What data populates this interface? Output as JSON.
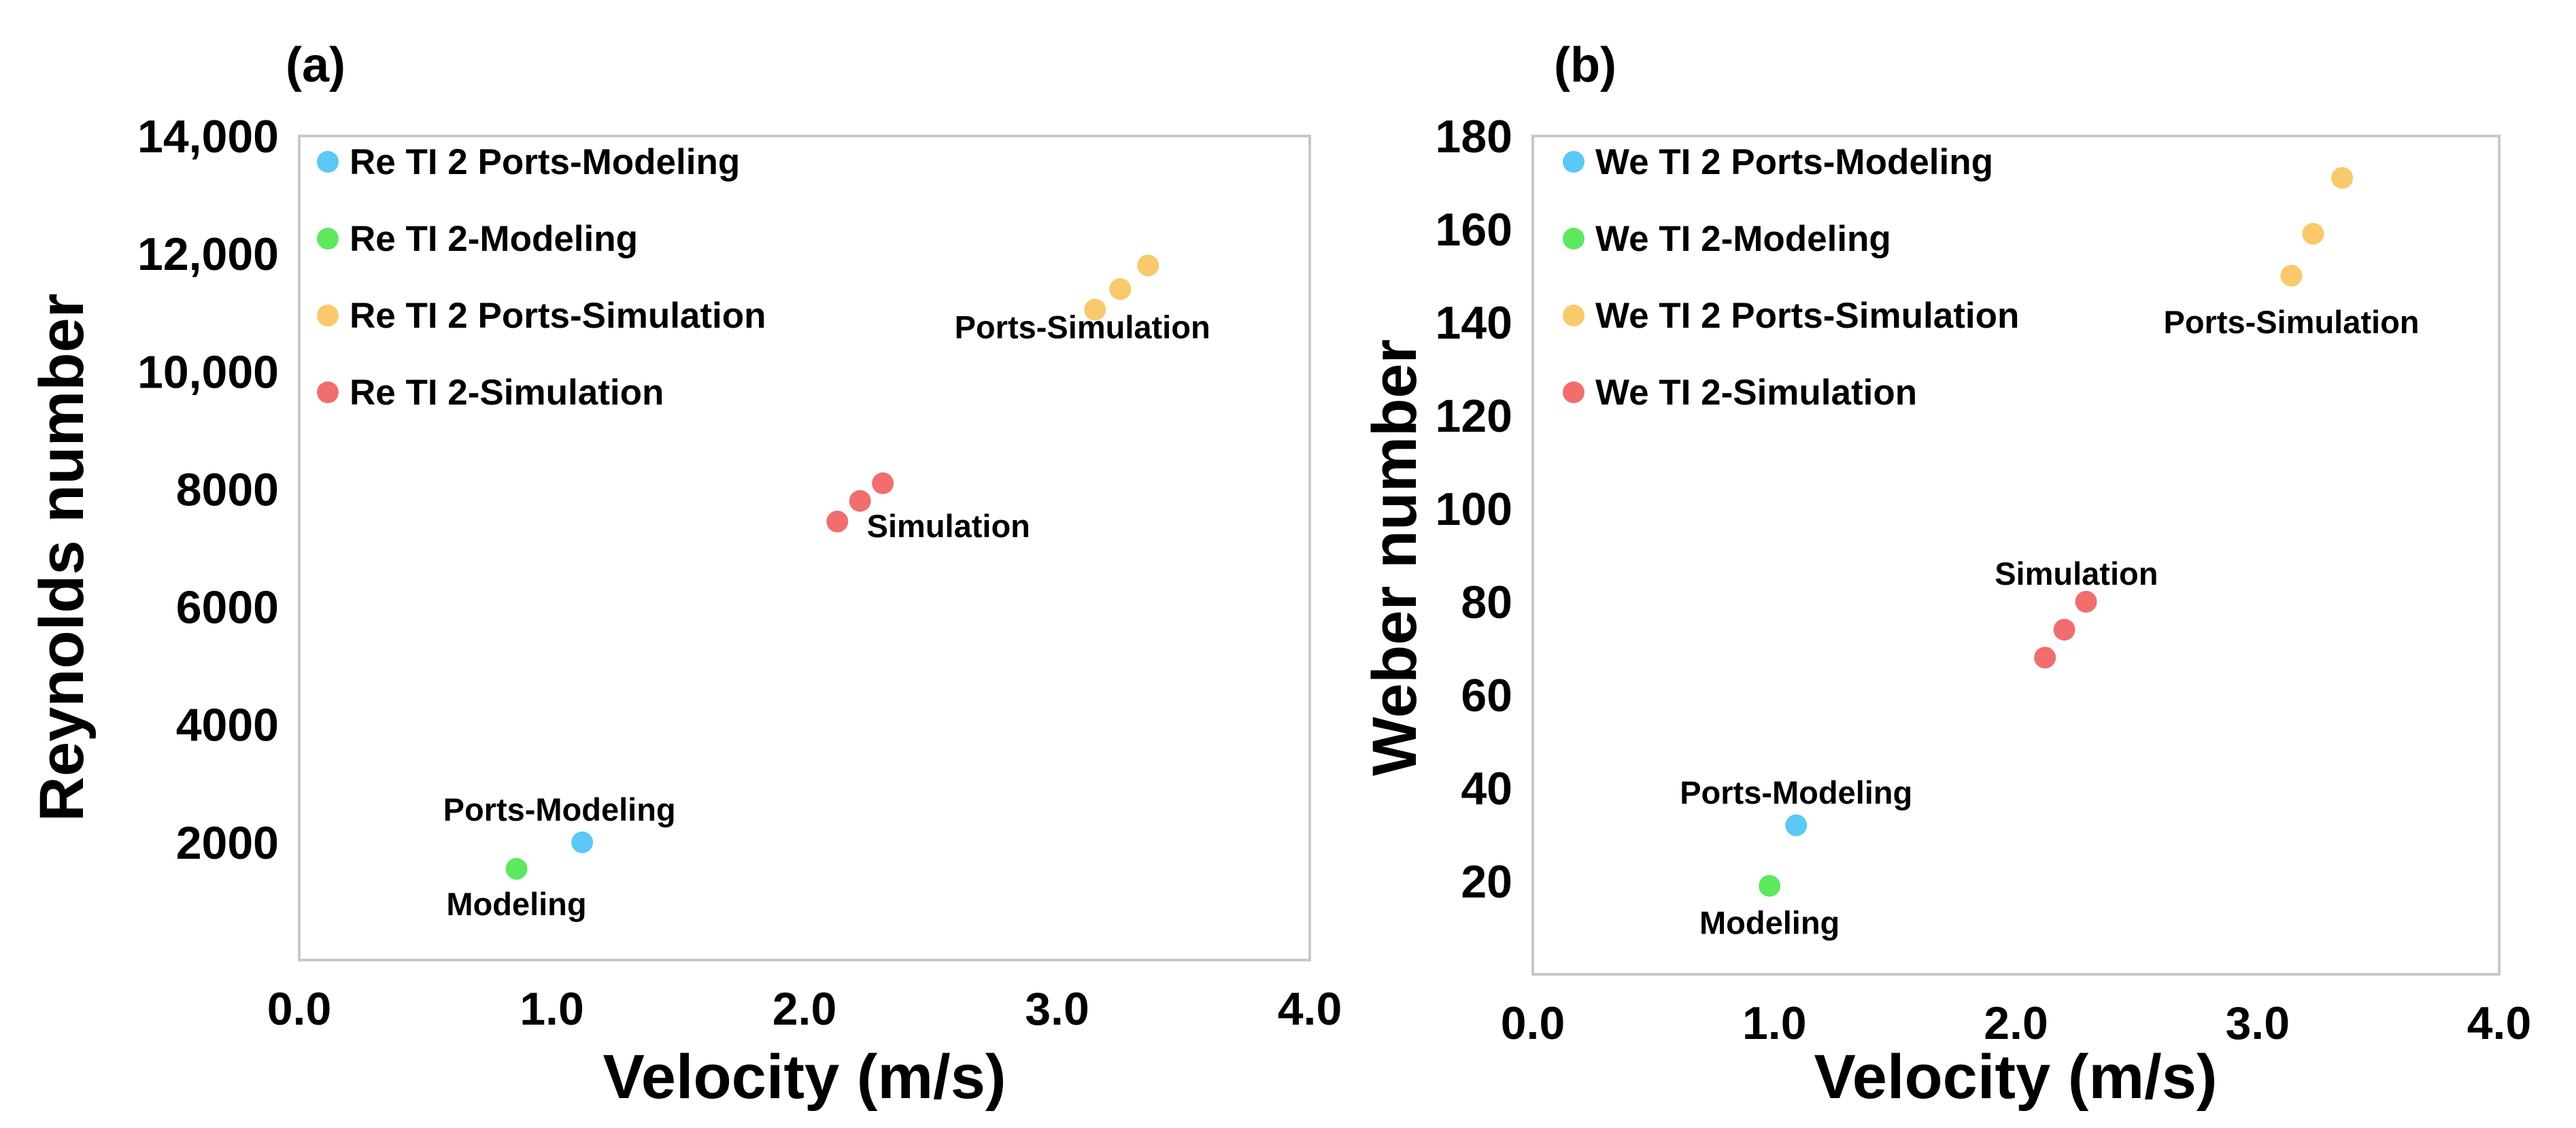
{
  "chart_data": [
    {
      "type": "scatter",
      "panel_label": "(a)",
      "xlabel": "Velocity (m/s)",
      "ylabel": "Reynolds number",
      "xlim": [
        0.0,
        4.0
      ],
      "ylim": [
        0,
        14000
      ],
      "grid": false,
      "legend_position": "top-left",
      "x_ticks": [
        {
          "value": 0.0,
          "label": "0.0"
        },
        {
          "value": 1.0,
          "label": "1.0"
        },
        {
          "value": 2.0,
          "label": "2.0"
        },
        {
          "value": 3.0,
          "label": "3.0"
        },
        {
          "value": 4.0,
          "label": "4.0"
        }
      ],
      "y_ticks": [
        {
          "value": 2000,
          "label": "2000"
        },
        {
          "value": 4000,
          "label": "4000"
        },
        {
          "value": 6000,
          "label": "6000"
        },
        {
          "value": 8000,
          "label": "8000"
        },
        {
          "value": 10000,
          "label": "10,000"
        },
        {
          "value": 12000,
          "label": "12,000"
        },
        {
          "value": 14000,
          "label": "14,000"
        }
      ],
      "series": [
        {
          "name": "Re TI 2 Ports-Modeling",
          "color": "#5bc8f5",
          "points": [
            {
              "x": 1.12,
              "y": 2000
            }
          ]
        },
        {
          "name": "Re TI 2-Modeling",
          "color": "#5ee85e",
          "points": [
            {
              "x": 0.86,
              "y": 1550
            }
          ]
        },
        {
          "name": "Re TI 2 Ports-Simulation",
          "color": "#f9c96b",
          "points": [
            {
              "x": 3.15,
              "y": 11050
            },
            {
              "x": 3.25,
              "y": 11400
            },
            {
              "x": 3.36,
              "y": 11800
            }
          ]
        },
        {
          "name": "Re TI 2-Simulation",
          "color": "#f26d6d",
          "points": [
            {
              "x": 2.13,
              "y": 7450
            },
            {
              "x": 2.22,
              "y": 7800
            },
            {
              "x": 2.31,
              "y": 8100
            }
          ]
        }
      ],
      "annotations": [
        {
          "text": "Ports-Simulation",
          "x": 3.1,
          "y": 10750
        },
        {
          "text": "Simulation",
          "x": 2.57,
          "y": 7370
        },
        {
          "text": "Ports-Modeling",
          "x": 1.03,
          "y": 2550
        },
        {
          "text": "Modeling",
          "x": 0.86,
          "y": 950
        }
      ]
    },
    {
      "type": "scatter",
      "panel_label": "(b)",
      "xlabel": "Velocity (m/s)",
      "ylabel": "Weber number",
      "xlim": [
        0.0,
        4.0
      ],
      "ylim": [
        0,
        180
      ],
      "grid": false,
      "legend_position": "top-left",
      "x_ticks": [
        {
          "value": 0.0,
          "label": "0.0"
        },
        {
          "value": 1.0,
          "label": "1.0"
        },
        {
          "value": 2.0,
          "label": "2.0"
        },
        {
          "value": 3.0,
          "label": "3.0"
        },
        {
          "value": 4.0,
          "label": "4.0"
        }
      ],
      "y_ticks": [
        {
          "value": 20,
          "label": "20"
        },
        {
          "value": 40,
          "label": "40"
        },
        {
          "value": 60,
          "label": "60"
        },
        {
          "value": 80,
          "label": "80"
        },
        {
          "value": 100,
          "label": "100"
        },
        {
          "value": 120,
          "label": "120"
        },
        {
          "value": 140,
          "label": "140"
        },
        {
          "value": 160,
          "label": "160"
        },
        {
          "value": 180,
          "label": "180"
        }
      ],
      "series": [
        {
          "name": "We TI 2 Ports-Modeling",
          "color": "#5bc8f5",
          "points": [
            {
              "x": 1.09,
              "y": 32
            }
          ]
        },
        {
          "name": "We TI 2-Modeling",
          "color": "#5ee85e",
          "points": [
            {
              "x": 0.98,
              "y": 19
            }
          ]
        },
        {
          "name": "We TI 2 Ports-Simulation",
          "color": "#f9c96b",
          "points": [
            {
              "x": 3.14,
              "y": 150
            },
            {
              "x": 3.23,
              "y": 159
            },
            {
              "x": 3.35,
              "y": 171
            }
          ]
        },
        {
          "name": "We TI 2-Simulation",
          "color": "#f26d6d",
          "points": [
            {
              "x": 2.12,
              "y": 68
            },
            {
              "x": 2.2,
              "y": 74
            },
            {
              "x": 2.29,
              "y": 80
            }
          ]
        }
      ],
      "annotations": [
        {
          "text": "Ports-Simulation",
          "x": 3.14,
          "y": 140
        },
        {
          "text": "Simulation",
          "x": 2.25,
          "y": 86
        },
        {
          "text": "Ports-Modeling",
          "x": 1.09,
          "y": 39
        },
        {
          "text": "Modeling",
          "x": 0.98,
          "y": 11
        }
      ]
    }
  ]
}
